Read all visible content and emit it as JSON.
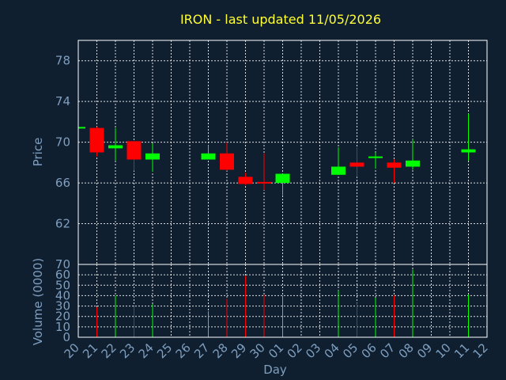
{
  "chart_data": {
    "type": "candlestick",
    "title": "IRON - last updated 11/05/2026",
    "price_panel": {
      "ylabel": "Price",
      "ylim": [
        58,
        80
      ],
      "yticks": [
        62,
        66,
        70,
        74,
        78
      ],
      "colors": {
        "up": "#00ff00",
        "down": "#ff0000"
      }
    },
    "volume_panel": {
      "ylabel": "Volume (0000)",
      "ylim": [
        0,
        70
      ],
      "yticks": [
        0,
        10,
        20,
        30,
        40,
        50,
        60,
        70
      ]
    },
    "x_axis": {
      "xlabel": "Day",
      "tick_labels": [
        "20",
        "21",
        "22",
        "23",
        "24",
        "25",
        "26",
        "27",
        "28",
        "29",
        "30",
        "01",
        "02",
        "03",
        "04",
        "05",
        "06",
        "07",
        "08",
        "09",
        "10",
        "11",
        "12"
      ]
    },
    "candles": [
      {
        "day": "20",
        "open": 71.5,
        "high": 71.5,
        "low": 71.5,
        "close": 71.5,
        "volume": 0
      },
      {
        "day": "21",
        "open": 71.4,
        "high": 71.5,
        "low": 68.6,
        "close": 69.0,
        "volume": 29
      },
      {
        "day": "22",
        "open": 69.4,
        "high": 71.4,
        "low": 68.2,
        "close": 69.7,
        "volume": 40
      },
      {
        "day": "23",
        "open": 70.1,
        "high": 70.1,
        "low": 67.2,
        "close": 68.3,
        "volume": 30
      },
      {
        "day": "24",
        "open": 68.3,
        "high": 69.9,
        "low": 67.1,
        "close": 68.9,
        "volume": 32
      },
      {
        "day": "27",
        "open": 68.3,
        "high": 69.7,
        "low": 68.3,
        "close": 68.9,
        "volume": 25
      },
      {
        "day": "28",
        "open": 68.9,
        "high": 70.0,
        "low": 67.2,
        "close": 67.3,
        "volume": 37
      },
      {
        "day": "29",
        "open": 66.6,
        "high": 67.0,
        "low": 65.8,
        "close": 65.9,
        "volume": 59
      },
      {
        "day": "30",
        "open": 66.1,
        "high": 68.9,
        "low": 65.3,
        "close": 66.0,
        "volume": 41
      },
      {
        "day": "01",
        "open": 66.0,
        "high": 66.9,
        "low": 64.8,
        "close": 66.9,
        "volume": 40
      },
      {
        "day": "04",
        "open": 66.8,
        "high": 69.5,
        "low": 66.8,
        "close": 67.6,
        "volume": 45
      },
      {
        "day": "05",
        "open": 68.0,
        "high": 69.5,
        "low": 66.6,
        "close": 67.6,
        "volume": 33
      },
      {
        "day": "06",
        "open": 68.5,
        "high": 69.0,
        "low": 67.4,
        "close": 68.6,
        "volume": 38
      },
      {
        "day": "07",
        "open": 68.0,
        "high": 68.3,
        "low": 66.0,
        "close": 67.5,
        "volume": 40
      },
      {
        "day": "08",
        "open": 67.6,
        "high": 70.3,
        "low": 67.3,
        "close": 68.2,
        "volume": 65
      },
      {
        "day": "11",
        "open": 69.0,
        "high": 72.8,
        "low": 68.2,
        "close": 69.3,
        "volume": 41
      }
    ]
  }
}
